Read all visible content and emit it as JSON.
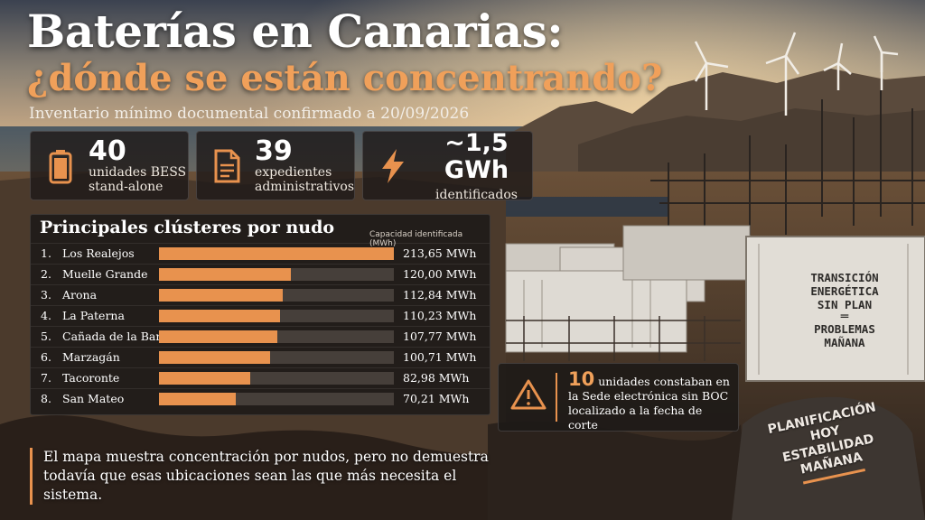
{
  "header": {
    "title_line1": "Baterías en Canarias:",
    "title_line2": "¿dónde se están concentrando?",
    "subtitle": "Inventario mínimo documental confirmado a 20/09/2026"
  },
  "stats": [
    {
      "icon": "battery-icon",
      "value": "40",
      "label_line1": "unidades BESS",
      "label_line2": "stand-alone"
    },
    {
      "icon": "document-icon",
      "value": "39",
      "label_line1": "expedientes",
      "label_line2": "administrativos"
    },
    {
      "icon": "lightning-icon",
      "value": "~1,5 GWh",
      "label_line1": "identificados",
      "label_line2": ""
    }
  ],
  "ranking": {
    "title": "Principales clústeres por nudo",
    "column_caption": "Capacidad identificada (MWh)",
    "rows": [
      {
        "rank": "1.",
        "name": "Los Realejos",
        "value": 213.65,
        "value_label": "213,65 MWh"
      },
      {
        "rank": "2.",
        "name": "Muelle Grande",
        "value": 120.0,
        "value_label": "120,00 MWh"
      },
      {
        "rank": "3.",
        "name": "Arona",
        "value": 112.84,
        "value_label": "112,84 MWh"
      },
      {
        "rank": "4.",
        "name": "La Paterna",
        "value": 110.23,
        "value_label": "110,23 MWh"
      },
      {
        "rank": "5.",
        "name": "Cañada de la Barca",
        "value": 107.77,
        "value_label": "107,77 MWh"
      },
      {
        "rank": "6.",
        "name": "Marzagán",
        "value": 100.71,
        "value_label": "100,71 MWh"
      },
      {
        "rank": "7.",
        "name": "Tacoronte",
        "value": 82.98,
        "value_label": "82,98 MWh"
      },
      {
        "rank": "8.",
        "name": "San Mateo",
        "value": 70.21,
        "value_label": "70,21 MWh"
      }
    ],
    "max_value": 213.65
  },
  "warning": {
    "icon": "warning-icon",
    "number": "10",
    "text_after_number": " unidades constaban en la Sede electrónica sin BOC localizado a la fecha de corte"
  },
  "footnote": {
    "line1": "El mapa muestra concentración por nudos, pero no demuestra",
    "line2": "todavía que esas ubicaciones sean las que más necesita el sistema."
  },
  "container_sign": {
    "line1": "TRANSICIÓN",
    "line2": "ENERGÉTICA",
    "line3": "SIN PLAN",
    "line4": "PROBLEMAS",
    "line5": "MAÑANA"
  },
  "rock_sign": {
    "line1": "PLANIFICACIÓN",
    "line2": "HOY",
    "line3": "ESTABILIDAD",
    "line4": "MAÑANA"
  },
  "colors": {
    "accent": "#e8924e",
    "panel": "#1c1917"
  }
}
